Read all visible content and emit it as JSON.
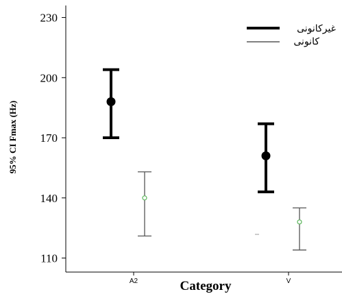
{
  "chart_data": {
    "type": "errorbar",
    "xlabel": "Category",
    "ylabel": "95% CI Fmax (Hz)",
    "categories": [
      "A2",
      "V"
    ],
    "ylim": [
      103,
      236
    ],
    "yticks": [
      110,
      140,
      170,
      200,
      230
    ],
    "grid": false,
    "legend_position": "top-right",
    "series": [
      {
        "name": "غیرکانونی",
        "style": "thick",
        "color": "#000000",
        "points": [
          {
            "category": "A2",
            "mean": 188,
            "lower": 170,
            "upper": 204
          },
          {
            "category": "V",
            "mean": 161,
            "lower": 143,
            "upper": 177
          }
        ]
      },
      {
        "name": "کانونی",
        "style": "thin",
        "color": "#555555",
        "marker_color": "#66bb66",
        "points": [
          {
            "category": "A2",
            "mean": 140,
            "lower": 121,
            "upper": 153
          },
          {
            "category": "V",
            "mean": 128,
            "lower": 114,
            "upper": 135
          }
        ]
      }
    ]
  }
}
